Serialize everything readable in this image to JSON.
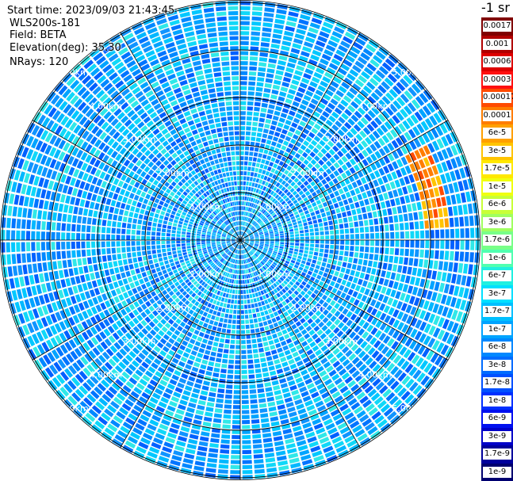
{
  "info": {
    "start_time": "Start time: 2023/09/03 21:43:45",
    "site": "WLS200s-181",
    "field": "Field: BETA",
    "elevation": "Elevation(deg): 35.30",
    "nrays": "NRays: 120"
  },
  "chart_data": {
    "type": "heatmap",
    "projection": "polar-ppi",
    "field": "BETA",
    "elevation_deg": 35.3,
    "n_rays": 120,
    "range_rings_km": [
      1,
      2,
      3,
      4,
      5
    ],
    "range_ring_labels": [
      "1.00km",
      "2.00km",
      "3.00km",
      "4.00km",
      "5.00km"
    ],
    "max_range_km": 6.4,
    "radial_spokes_deg": [
      0,
      30,
      60,
      90,
      120,
      150,
      180,
      210,
      240,
      270,
      300,
      330
    ],
    "background_beta": "1e-8 to 1.7e-7",
    "feature": {
      "description_value": "3e-5 to 1e-4",
      "azimuth_deg": [
        64,
        88
      ],
      "range_km": [
        3.9,
        4.3
      ]
    },
    "colorbar": {
      "units": "-1 sr",
      "labels": [
        "0.0017",
        "0.001",
        "0.0006",
        "0.0003",
        "0.00017",
        "0.0001",
        "6e-5",
        "3e-5",
        "1.7e-5",
        "1e-5",
        "6e-6",
        "3e-6",
        "1.7e-6",
        "1e-6",
        "6e-7",
        "3e-7",
        "1.7e-7",
        "1e-7",
        "6e-8",
        "3e-8",
        "1.7e-8",
        "1e-8",
        "6e-9",
        "3e-9",
        "1.7e-9",
        "1e-9"
      ],
      "colors": [
        "#800000",
        "#b00000",
        "#dd0000",
        "#ff1010",
        "#ff4a00",
        "#ff7d00",
        "#ffa000",
        "#ffc400",
        "#ffe800",
        "#f0ff10",
        "#c8ff38",
        "#a0ff60",
        "#78ff88",
        "#50ffb0",
        "#20f0e0",
        "#00e0ff",
        "#00c0ff",
        "#00a4ff",
        "#0088ff",
        "#006cff",
        "#0050ff",
        "#0030ff",
        "#0010f0",
        "#0000c8",
        "#00009c",
        "#000070"
      ]
    }
  }
}
